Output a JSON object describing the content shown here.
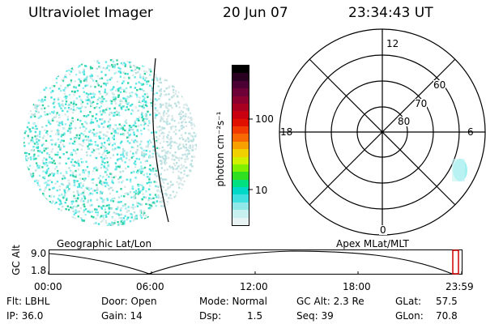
{
  "header": {
    "instrument": "Ultraviolet Imager",
    "date": "20 Jun 07",
    "time": "23:34:43 UT"
  },
  "colorbar": {
    "unit_label": "photon cm⁻²s⁻¹",
    "ticks": [
      "100",
      "10"
    ],
    "colors": [
      "#000000",
      "#2a0020",
      "#4b0033",
      "#6e0038",
      "#8c0030",
      "#a80020",
      "#c80010",
      "#e01000",
      "#f03a00",
      "#f86800",
      "#f8a000",
      "#f0d000",
      "#d0f000",
      "#80f000",
      "#30e020",
      "#00e080",
      "#00d8c8",
      "#40e0e0",
      "#90e8e8",
      "#c8f0f0",
      "#e8f4f4"
    ]
  },
  "globe": {
    "label": "Geographic Lat/Lon",
    "dot_colors": [
      "#40e0d8",
      "#66e8e8",
      "#99f0f0",
      "#b8e0e0",
      "#d8e8e8",
      "#30d0a0"
    ]
  },
  "polar": {
    "label": "Apex  MLat/MLT",
    "mlt_labels": [
      "12",
      "18",
      "6",
      "0"
    ],
    "lat_labels": [
      "60",
      "70",
      "80"
    ],
    "blob_color": "#a0f0f0"
  },
  "altitude_plot": {
    "axis_label": "GC Alt",
    "y_ticks": [
      "9.0",
      "1.8"
    ],
    "x_ticks": [
      "00:00",
      "06:00",
      "12:00",
      "18:00",
      "23:59"
    ],
    "marker_color": "#d00000"
  },
  "info": {
    "row1": {
      "flt": "Flt: LBHL",
      "door": "Door: Open",
      "mode": "Mode: Normal",
      "gcalt": "GC Alt: 2.3 Re",
      "glat_label": "GLat:",
      "glat_value": "57.5"
    },
    "row2": {
      "ip": "IP: 36.0",
      "gain": "Gain: 14",
      "dsp_label": "Dsp:",
      "dsp_value": "1.5",
      "seq": "Seq: 39",
      "glon_label": "GLon:",
      "glon_value": "70.8"
    }
  }
}
